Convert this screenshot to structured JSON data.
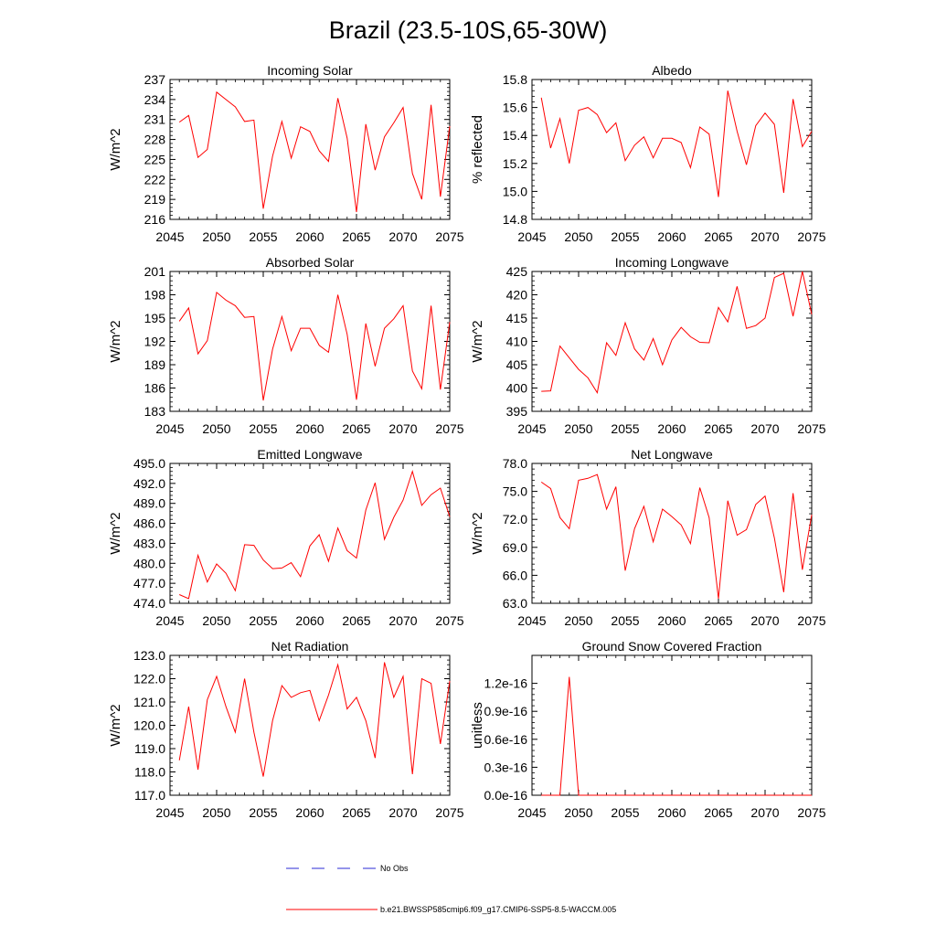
{
  "title": "Brazil (23.5-10S,65-30W)",
  "colors": {
    "model": "#ff0000",
    "obs": "#2b2bd6",
    "axis": "#000000"
  },
  "legend": {
    "obs_label": "No Obs",
    "model_label": "b.e21.BWSSP585cmip6.f09_g17.CMIP6-SSP5-8.5-WACCM.005"
  },
  "chart_data": [
    {
      "type": "line",
      "title": "Incoming Solar",
      "ylabel": "W/m^2",
      "xlim": [
        2045,
        2075
      ],
      "ylim": [
        216,
        237
      ],
      "xticks": [
        2045,
        2050,
        2055,
        2060,
        2065,
        2070,
        2075
      ],
      "yticks": [
        216,
        219,
        222,
        225,
        228,
        231,
        234,
        237
      ],
      "ytick_labels": [
        "216",
        "219",
        "222",
        "225",
        "228",
        "231",
        "234",
        "237"
      ],
      "minor_x": 1,
      "x": [
        2046,
        2047,
        2048,
        2049,
        2050,
        2051,
        2052,
        2053,
        2054,
        2055,
        2056,
        2057,
        2058,
        2059,
        2060,
        2061,
        2062,
        2063,
        2064,
        2065,
        2066,
        2067,
        2068,
        2069,
        2070,
        2071,
        2072,
        2073,
        2074,
        2075
      ],
      "series": [
        {
          "name": "b.e21.BWSSP585cmip6.f09_g17.CMIP6-SSP5-8.5-WACCM.005",
          "values": [
            230.6,
            231.6,
            225.3,
            226.5,
            235.1,
            234.0,
            232.9,
            230.7,
            230.9,
            217.6,
            225.5,
            230.7,
            225.2,
            229.9,
            229.2,
            226.3,
            224.7,
            234.2,
            228.2,
            217.1,
            230.3,
            223.4,
            228.4,
            230.5,
            232.8,
            222.9,
            219.0,
            233.2,
            219.4,
            230.0
          ]
        }
      ]
    },
    {
      "type": "line",
      "title": "Albedo",
      "ylabel": "% reflected",
      "xlim": [
        2045,
        2075
      ],
      "ylim": [
        14.8,
        15.8
      ],
      "xticks": [
        2045,
        2050,
        2055,
        2060,
        2065,
        2070,
        2075
      ],
      "yticks": [
        14.8,
        15.0,
        15.2,
        15.4,
        15.6,
        15.8
      ],
      "ytick_labels": [
        "14.8",
        "15.0",
        "15.2",
        "15.4",
        "15.6",
        "15.8"
      ],
      "minor_x": 1,
      "x": [
        2046,
        2047,
        2048,
        2049,
        2050,
        2051,
        2052,
        2053,
        2054,
        2055,
        2056,
        2057,
        2058,
        2059,
        2060,
        2061,
        2062,
        2063,
        2064,
        2065,
        2066,
        2067,
        2068,
        2069,
        2070,
        2071,
        2072,
        2073,
        2074,
        2075
      ],
      "series": [
        {
          "name": "b.e21.BWSSP585cmip6.f09_g17.CMIP6-SSP5-8.5-WACCM.005",
          "values": [
            15.67,
            15.31,
            15.52,
            15.2,
            15.58,
            15.6,
            15.55,
            15.42,
            15.49,
            15.22,
            15.33,
            15.39,
            15.24,
            15.38,
            15.38,
            15.35,
            15.17,
            15.46,
            15.41,
            14.96,
            15.72,
            15.43,
            15.19,
            15.47,
            15.56,
            15.48,
            14.99,
            15.66,
            15.32,
            15.43
          ]
        }
      ]
    },
    {
      "type": "line",
      "title": "Absorbed Solar",
      "ylabel": "W/m^2",
      "xlim": [
        2045,
        2075
      ],
      "ylim": [
        183,
        201
      ],
      "xticks": [
        2045,
        2050,
        2055,
        2060,
        2065,
        2070,
        2075
      ],
      "yticks": [
        183,
        186,
        189,
        192,
        195,
        198,
        201
      ],
      "ytick_labels": [
        "183",
        "186",
        "189",
        "192",
        "195",
        "198",
        "201"
      ],
      "minor_x": 1,
      "x": [
        2046,
        2047,
        2048,
        2049,
        2050,
        2051,
        2052,
        2053,
        2054,
        2055,
        2056,
        2057,
        2058,
        2059,
        2060,
        2061,
        2062,
        2063,
        2064,
        2065,
        2066,
        2067,
        2068,
        2069,
        2070,
        2071,
        2072,
        2073,
        2074,
        2075
      ],
      "series": [
        {
          "name": "b.e21.BWSSP585cmip6.f09_g17.CMIP6-SSP5-8.5-WACCM.005",
          "values": [
            194.6,
            196.3,
            190.4,
            192.1,
            198.3,
            197.3,
            196.6,
            195.1,
            195.2,
            184.4,
            191.0,
            195.2,
            190.8,
            193.7,
            193.7,
            191.5,
            190.6,
            198.0,
            192.9,
            184.5,
            194.3,
            188.8,
            193.7,
            194.9,
            196.6,
            188.2,
            185.9,
            196.6,
            185.8,
            194.5
          ]
        }
      ]
    },
    {
      "type": "line",
      "title": "Incoming Longwave",
      "ylabel": "W/m^2",
      "xlim": [
        2045,
        2075
      ],
      "ylim": [
        395,
        425
      ],
      "xticks": [
        2045,
        2050,
        2055,
        2060,
        2065,
        2070,
        2075
      ],
      "yticks": [
        395,
        400,
        405,
        410,
        415,
        420,
        425
      ],
      "ytick_labels": [
        "395",
        "400",
        "405",
        "410",
        "415",
        "420",
        "425"
      ],
      "minor_x": 1,
      "x": [
        2046,
        2047,
        2048,
        2049,
        2050,
        2051,
        2052,
        2053,
        2054,
        2055,
        2056,
        2057,
        2058,
        2059,
        2060,
        2061,
        2062,
        2063,
        2064,
        2065,
        2066,
        2067,
        2068,
        2069,
        2070,
        2071,
        2072,
        2073,
        2074,
        2075
      ],
      "series": [
        {
          "name": "b.e21.BWSSP585cmip6.f09_g17.CMIP6-SSP5-8.5-WACCM.005",
          "values": [
            399.3,
            399.4,
            409.0,
            406.5,
            404.0,
            402.2,
            399.0,
            409.7,
            407.0,
            414.0,
            408.4,
            406.0,
            410.6,
            405.0,
            410.3,
            413.0,
            411.0,
            409.8,
            409.7,
            417.3,
            414.2,
            421.8,
            412.8,
            413.4,
            415.0,
            423.7,
            424.6,
            415.4,
            425.0,
            415.8
          ]
        }
      ]
    },
    {
      "type": "line",
      "title": "Emitted Longwave",
      "ylabel": "W/m^2",
      "xlim": [
        2045,
        2075
      ],
      "ylim": [
        474,
        495
      ],
      "xticks": [
        2045,
        2050,
        2055,
        2060,
        2065,
        2070,
        2075
      ],
      "yticks": [
        474,
        477,
        480,
        483,
        486,
        489,
        492,
        495
      ],
      "ytick_labels": [
        "474.0",
        "477.0",
        "480.0",
        "483.0",
        "486.0",
        "489.0",
        "492.0",
        "495.0"
      ],
      "minor_x": 1,
      "x": [
        2046,
        2047,
        2048,
        2049,
        2050,
        2051,
        2052,
        2053,
        2054,
        2055,
        2056,
        2057,
        2058,
        2059,
        2060,
        2061,
        2062,
        2063,
        2064,
        2065,
        2066,
        2067,
        2068,
        2069,
        2070,
        2071,
        2072,
        2073,
        2074,
        2075
      ],
      "series": [
        {
          "name": "b.e21.BWSSP585cmip6.f09_g17.CMIP6-SSP5-8.5-WACCM.005",
          "values": [
            475.3,
            474.7,
            481.2,
            477.2,
            479.9,
            478.5,
            475.9,
            482.8,
            482.7,
            480.5,
            479.2,
            479.3,
            480.1,
            478.0,
            482.6,
            484.3,
            480.3,
            485.3,
            481.9,
            480.8,
            488.0,
            492.1,
            483.6,
            486.9,
            489.5,
            493.8,
            488.7,
            490.3,
            491.3,
            487.0
          ]
        }
      ]
    },
    {
      "type": "line",
      "title": "Net Longwave",
      "ylabel": "W/m^2",
      "xlim": [
        2045,
        2075
      ],
      "ylim": [
        63,
        78
      ],
      "xticks": [
        2045,
        2050,
        2055,
        2060,
        2065,
        2070,
        2075
      ],
      "yticks": [
        63,
        66,
        69,
        72,
        75,
        78
      ],
      "ytick_labels": [
        "63.0",
        "66.0",
        "69.0",
        "72.0",
        "75.0",
        "78.0"
      ],
      "minor_x": 1,
      "x": [
        2046,
        2047,
        2048,
        2049,
        2050,
        2051,
        2052,
        2053,
        2054,
        2055,
        2056,
        2057,
        2058,
        2059,
        2060,
        2061,
        2062,
        2063,
        2064,
        2065,
        2066,
        2067,
        2068,
        2069,
        2070,
        2071,
        2072,
        2073,
        2074,
        2075
      ],
      "series": [
        {
          "name": "b.e21.BWSSP585cmip6.f09_g17.CMIP6-SSP5-8.5-WACCM.005",
          "values": [
            76.0,
            75.3,
            72.2,
            71.0,
            76.2,
            76.4,
            76.8,
            73.1,
            75.5,
            66.5,
            71.0,
            73.4,
            69.6,
            73.1,
            72.3,
            71.4,
            69.4,
            75.4,
            72.2,
            63.5,
            74.0,
            70.3,
            70.9,
            73.6,
            74.5,
            70.0,
            64.2,
            74.8,
            66.6,
            72.5
          ]
        }
      ]
    },
    {
      "type": "line",
      "title": "Net Radiation",
      "ylabel": "W/m^2",
      "xlim": [
        2045,
        2075
      ],
      "ylim": [
        117,
        123
      ],
      "xticks": [
        2045,
        2050,
        2055,
        2060,
        2065,
        2070,
        2075
      ],
      "yticks": [
        117,
        118,
        119,
        120,
        121,
        122,
        123
      ],
      "ytick_labels": [
        "117.0",
        "118.0",
        "119.0",
        "120.0",
        "121.0",
        "122.0",
        "123.0"
      ],
      "minor_x": 1,
      "x": [
        2046,
        2047,
        2048,
        2049,
        2050,
        2051,
        2052,
        2053,
        2054,
        2055,
        2056,
        2057,
        2058,
        2059,
        2060,
        2061,
        2062,
        2063,
        2064,
        2065,
        2066,
        2067,
        2068,
        2069,
        2070,
        2071,
        2072,
        2073,
        2074,
        2075
      ],
      "series": [
        {
          "name": "b.e21.BWSSP585cmip6.f09_g17.CMIP6-SSP5-8.5-WACCM.005",
          "values": [
            118.5,
            120.8,
            118.1,
            121.1,
            122.1,
            120.8,
            119.7,
            122.0,
            119.7,
            117.8,
            120.2,
            121.7,
            121.2,
            121.4,
            121.5,
            120.2,
            121.3,
            122.6,
            120.7,
            121.2,
            120.2,
            118.6,
            122.7,
            121.2,
            122.1,
            117.9,
            122.0,
            121.8,
            119.2,
            121.9
          ]
        }
      ]
    },
    {
      "type": "line",
      "title": "Ground Snow Covered Fraction",
      "ylabel": "unitless",
      "xlim": [
        2045,
        2075
      ],
      "ylim": [
        0,
        1.5
      ],
      "xticks": [
        2045,
        2050,
        2055,
        2060,
        2065,
        2070,
        2075
      ],
      "yticks": [
        0,
        0.3,
        0.6,
        0.9,
        1.2
      ],
      "ytick_labels": [
        "0.0e-16",
        "0.3e-16",
        "0.6e-16",
        "0.9e-16",
        "1.2e-16"
      ],
      "y_scale_note": "values in units of 1e-16",
      "minor_x": 1,
      "x": [
        2046,
        2047,
        2048,
        2049,
        2050,
        2051,
        2052,
        2053,
        2054,
        2055,
        2056,
        2057,
        2058,
        2059,
        2060,
        2061,
        2062,
        2063,
        2064,
        2065,
        2066,
        2067,
        2068,
        2069,
        2070,
        2071,
        2072,
        2073,
        2074,
        2075
      ],
      "series": [
        {
          "name": "b.e21.BWSSP585cmip6.f09_g17.CMIP6-SSP5-8.5-WACCM.005",
          "values": [
            0,
            0,
            0,
            1.27,
            0,
            0,
            0,
            0,
            0,
            0,
            0,
            0,
            0,
            0,
            0,
            0,
            0,
            0,
            0,
            0,
            0,
            0,
            0,
            0,
            0,
            0,
            0,
            0,
            0,
            0
          ]
        }
      ]
    }
  ]
}
